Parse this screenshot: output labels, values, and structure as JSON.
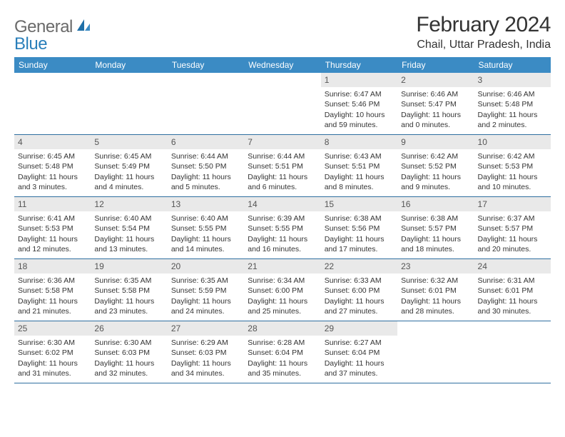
{
  "logo": {
    "part1": "General",
    "part2": "Blue"
  },
  "title": "February 2024",
  "location": "Chail, Uttar Pradesh, India",
  "colors": {
    "header_bg": "#3b8bc4",
    "header_text": "#ffffff",
    "divider": "#2f6fa0",
    "daynum_bg": "#e9e9e9",
    "logo_gray": "#6a6a6a",
    "logo_blue": "#2a7fba"
  },
  "weekdays": [
    "Sunday",
    "Monday",
    "Tuesday",
    "Wednesday",
    "Thursday",
    "Friday",
    "Saturday"
  ],
  "weeks": [
    [
      {
        "num": "",
        "empty": true
      },
      {
        "num": "",
        "empty": true
      },
      {
        "num": "",
        "empty": true
      },
      {
        "num": "",
        "empty": true
      },
      {
        "num": "1",
        "l1": "Sunrise: 6:47 AM",
        "l2": "Sunset: 5:46 PM",
        "l3": "Daylight: 10 hours",
        "l4": "and 59 minutes."
      },
      {
        "num": "2",
        "l1": "Sunrise: 6:46 AM",
        "l2": "Sunset: 5:47 PM",
        "l3": "Daylight: 11 hours",
        "l4": "and 0 minutes."
      },
      {
        "num": "3",
        "l1": "Sunrise: 6:46 AM",
        "l2": "Sunset: 5:48 PM",
        "l3": "Daylight: 11 hours",
        "l4": "and 2 minutes."
      }
    ],
    [
      {
        "num": "4",
        "l1": "Sunrise: 6:45 AM",
        "l2": "Sunset: 5:48 PM",
        "l3": "Daylight: 11 hours",
        "l4": "and 3 minutes."
      },
      {
        "num": "5",
        "l1": "Sunrise: 6:45 AM",
        "l2": "Sunset: 5:49 PM",
        "l3": "Daylight: 11 hours",
        "l4": "and 4 minutes."
      },
      {
        "num": "6",
        "l1": "Sunrise: 6:44 AM",
        "l2": "Sunset: 5:50 PM",
        "l3": "Daylight: 11 hours",
        "l4": "and 5 minutes."
      },
      {
        "num": "7",
        "l1": "Sunrise: 6:44 AM",
        "l2": "Sunset: 5:51 PM",
        "l3": "Daylight: 11 hours",
        "l4": "and 6 minutes."
      },
      {
        "num": "8",
        "l1": "Sunrise: 6:43 AM",
        "l2": "Sunset: 5:51 PM",
        "l3": "Daylight: 11 hours",
        "l4": "and 8 minutes."
      },
      {
        "num": "9",
        "l1": "Sunrise: 6:42 AM",
        "l2": "Sunset: 5:52 PM",
        "l3": "Daylight: 11 hours",
        "l4": "and 9 minutes."
      },
      {
        "num": "10",
        "l1": "Sunrise: 6:42 AM",
        "l2": "Sunset: 5:53 PM",
        "l3": "Daylight: 11 hours",
        "l4": "and 10 minutes."
      }
    ],
    [
      {
        "num": "11",
        "l1": "Sunrise: 6:41 AM",
        "l2": "Sunset: 5:53 PM",
        "l3": "Daylight: 11 hours",
        "l4": "and 12 minutes."
      },
      {
        "num": "12",
        "l1": "Sunrise: 6:40 AM",
        "l2": "Sunset: 5:54 PM",
        "l3": "Daylight: 11 hours",
        "l4": "and 13 minutes."
      },
      {
        "num": "13",
        "l1": "Sunrise: 6:40 AM",
        "l2": "Sunset: 5:55 PM",
        "l3": "Daylight: 11 hours",
        "l4": "and 14 minutes."
      },
      {
        "num": "14",
        "l1": "Sunrise: 6:39 AM",
        "l2": "Sunset: 5:55 PM",
        "l3": "Daylight: 11 hours",
        "l4": "and 16 minutes."
      },
      {
        "num": "15",
        "l1": "Sunrise: 6:38 AM",
        "l2": "Sunset: 5:56 PM",
        "l3": "Daylight: 11 hours",
        "l4": "and 17 minutes."
      },
      {
        "num": "16",
        "l1": "Sunrise: 6:38 AM",
        "l2": "Sunset: 5:57 PM",
        "l3": "Daylight: 11 hours",
        "l4": "and 18 minutes."
      },
      {
        "num": "17",
        "l1": "Sunrise: 6:37 AM",
        "l2": "Sunset: 5:57 PM",
        "l3": "Daylight: 11 hours",
        "l4": "and 20 minutes."
      }
    ],
    [
      {
        "num": "18",
        "l1": "Sunrise: 6:36 AM",
        "l2": "Sunset: 5:58 PM",
        "l3": "Daylight: 11 hours",
        "l4": "and 21 minutes."
      },
      {
        "num": "19",
        "l1": "Sunrise: 6:35 AM",
        "l2": "Sunset: 5:58 PM",
        "l3": "Daylight: 11 hours",
        "l4": "and 23 minutes."
      },
      {
        "num": "20",
        "l1": "Sunrise: 6:35 AM",
        "l2": "Sunset: 5:59 PM",
        "l3": "Daylight: 11 hours",
        "l4": "and 24 minutes."
      },
      {
        "num": "21",
        "l1": "Sunrise: 6:34 AM",
        "l2": "Sunset: 6:00 PM",
        "l3": "Daylight: 11 hours",
        "l4": "and 25 minutes."
      },
      {
        "num": "22",
        "l1": "Sunrise: 6:33 AM",
        "l2": "Sunset: 6:00 PM",
        "l3": "Daylight: 11 hours",
        "l4": "and 27 minutes."
      },
      {
        "num": "23",
        "l1": "Sunrise: 6:32 AM",
        "l2": "Sunset: 6:01 PM",
        "l3": "Daylight: 11 hours",
        "l4": "and 28 minutes."
      },
      {
        "num": "24",
        "l1": "Sunrise: 6:31 AM",
        "l2": "Sunset: 6:01 PM",
        "l3": "Daylight: 11 hours",
        "l4": "and 30 minutes."
      }
    ],
    [
      {
        "num": "25",
        "l1": "Sunrise: 6:30 AM",
        "l2": "Sunset: 6:02 PM",
        "l3": "Daylight: 11 hours",
        "l4": "and 31 minutes."
      },
      {
        "num": "26",
        "l1": "Sunrise: 6:30 AM",
        "l2": "Sunset: 6:03 PM",
        "l3": "Daylight: 11 hours",
        "l4": "and 32 minutes."
      },
      {
        "num": "27",
        "l1": "Sunrise: 6:29 AM",
        "l2": "Sunset: 6:03 PM",
        "l3": "Daylight: 11 hours",
        "l4": "and 34 minutes."
      },
      {
        "num": "28",
        "l1": "Sunrise: 6:28 AM",
        "l2": "Sunset: 6:04 PM",
        "l3": "Daylight: 11 hours",
        "l4": "and 35 minutes."
      },
      {
        "num": "29",
        "l1": "Sunrise: 6:27 AM",
        "l2": "Sunset: 6:04 PM",
        "l3": "Daylight: 11 hours",
        "l4": "and 37 minutes."
      },
      {
        "num": "",
        "empty": true
      },
      {
        "num": "",
        "empty": true
      }
    ]
  ]
}
